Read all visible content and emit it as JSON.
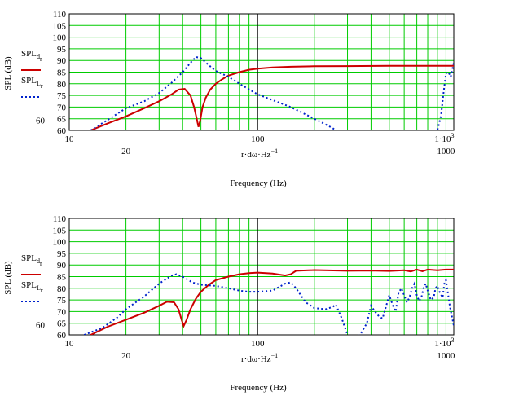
{
  "chart_data": [
    {
      "type": "line",
      "ylabel": "SPL (dB)",
      "xlabel_expr": "r·dω·Hz",
      "xlabel_exp": "−1",
      "xtitle": "Frequency (Hz)",
      "xscale": "log",
      "xlim": [
        10,
        1100
      ],
      "ylim": [
        60,
        110
      ],
      "yticks": [
        "110",
        "105",
        "100",
        "95",
        "90",
        "85",
        "80",
        "75",
        "70",
        "65",
        "60"
      ],
      "ytick_values": [
        110,
        105,
        100,
        95,
        90,
        85,
        80,
        75,
        70,
        65,
        60
      ],
      "extra_ytick": "60",
      "xticks_upper": [
        "10",
        "100",
        "1·10"
      ],
      "xticks_upper_exp": "3",
      "xticks_lower": [
        "20",
        "1000"
      ],
      "grid": true,
      "legend_position": "left",
      "series": [
        {
          "name": "SPL",
          "name_sub": "d",
          "name_sub2": "r",
          "color": "#cc0000",
          "style": "solid",
          "x": [
            13,
            16,
            20,
            25,
            30,
            35,
            38,
            41,
            44,
            46,
            47.5,
            48.5,
            49.5,
            51,
            53,
            56,
            60,
            65,
            70,
            80,
            90,
            100,
            120,
            150,
            200,
            300,
            500,
            700,
            1000,
            1100
          ],
          "y": [
            60,
            63,
            66,
            69.5,
            72.5,
            75.5,
            77.5,
            77.8,
            75,
            70,
            65,
            61.5,
            64,
            70,
            74,
            77.5,
            80,
            82,
            83.5,
            85,
            86,
            86.5,
            87,
            87.3,
            87.5,
            87.6,
            87.7,
            87.7,
            87.7,
            87.7
          ]
        },
        {
          "name": "SPL",
          "name_sub": "L",
          "name_sub2": "r",
          "color": "#0022cc",
          "style": "dotted",
          "x": [
            13,
            16,
            20,
            25,
            30,
            35,
            40,
            44,
            47,
            50,
            55,
            60,
            70,
            80,
            100,
            120,
            150,
            200,
            250,
            260,
            900,
            940,
            970,
            1000,
            1030,
            1060,
            1100
          ],
          "y": [
            60,
            64.5,
            69.5,
            72.5,
            76,
            80.5,
            85,
            89,
            91.5,
            91,
            88,
            85.5,
            83,
            80,
            75.5,
            73,
            70,
            65,
            61,
            60,
            60,
            66,
            76,
            84.5,
            85,
            83,
            89
          ]
        }
      ]
    },
    {
      "type": "line",
      "ylabel": "SPL (dB)",
      "xlabel_expr": "r·dω·Hz",
      "xlabel_exp": "−1",
      "xtitle": "Frequency (Hz)",
      "xscale": "log",
      "xlim": [
        10,
        1100
      ],
      "ylim": [
        60,
        110
      ],
      "yticks": [
        "110",
        "105",
        "100",
        "95",
        "90",
        "85",
        "80",
        "75",
        "70",
        "65",
        "60"
      ],
      "ytick_values": [
        110,
        105,
        100,
        95,
        90,
        85,
        80,
        75,
        70,
        65,
        60
      ],
      "extra_ytick": "60",
      "xticks_upper": [
        "10",
        "100",
        "1·10"
      ],
      "xticks_upper_exp": "3",
      "xticks_lower": [
        "20",
        "1000"
      ],
      "grid": true,
      "legend_position": "left",
      "series": [
        {
          "name": "SPL",
          "name_sub": "d",
          "name_sub2": "r",
          "color": "#cc0000",
          "style": "solid",
          "x": [
            13,
            16,
            20,
            25,
            30,
            33,
            36,
            38,
            39.5,
            40.5,
            42,
            44,
            47,
            50,
            55,
            60,
            70,
            80,
            90,
            100,
            120,
            140,
            150,
            160,
            200,
            300,
            400,
            500,
            600,
            650,
            700,
            750,
            800,
            900,
            1000,
            1100
          ],
          "y": [
            60,
            63.5,
            66.5,
            69.5,
            72.5,
            74.2,
            74,
            71,
            66.5,
            63.8,
            66.5,
            71,
            75.5,
            78.5,
            81.5,
            83.5,
            85,
            86,
            86.5,
            86.7,
            86.3,
            85.5,
            86,
            87.5,
            87.8,
            87.5,
            87.6,
            87.4,
            87.7,
            87.2,
            88,
            87.3,
            88,
            87.7,
            88,
            88
          ]
        },
        {
          "name": "SPL",
          "name_sub": "L",
          "name_sub2": "r",
          "color": "#0022cc",
          "style": "dotted",
          "x": [
            12,
            15,
            18,
            20,
            25,
            30,
            35,
            37,
            40,
            45,
            50,
            60,
            70,
            80,
            90,
            100,
            120,
            140,
            150,
            160,
            180,
            200,
            230,
            250,
            260,
            280,
            300,
            320,
            350,
            380,
            400,
            420,
            440,
            460,
            480,
            500,
            520,
            540,
            560,
            580,
            600,
            620,
            640,
            660,
            680,
            700,
            720,
            740,
            760,
            780,
            800,
            830,
            860,
            880,
            900,
            930,
            960,
            980,
            1000,
            1050,
            1100
          ],
          "y": [
            60,
            63,
            67.5,
            71,
            76.5,
            82,
            85.5,
            86,
            85,
            82.5,
            81.5,
            81,
            80,
            79,
            78.5,
            78.5,
            79,
            82,
            82.5,
            80,
            74,
            71.5,
            71,
            72,
            73,
            67,
            60,
            57,
            60,
            65,
            72.5,
            70,
            68,
            67,
            72,
            77,
            73,
            70,
            78,
            80,
            77,
            74,
            76,
            80,
            82,
            77,
            74.5,
            76,
            80,
            82,
            79,
            75,
            76,
            80,
            81,
            78,
            76,
            82,
            83.5,
            72,
            64
          ]
        }
      ]
    }
  ]
}
